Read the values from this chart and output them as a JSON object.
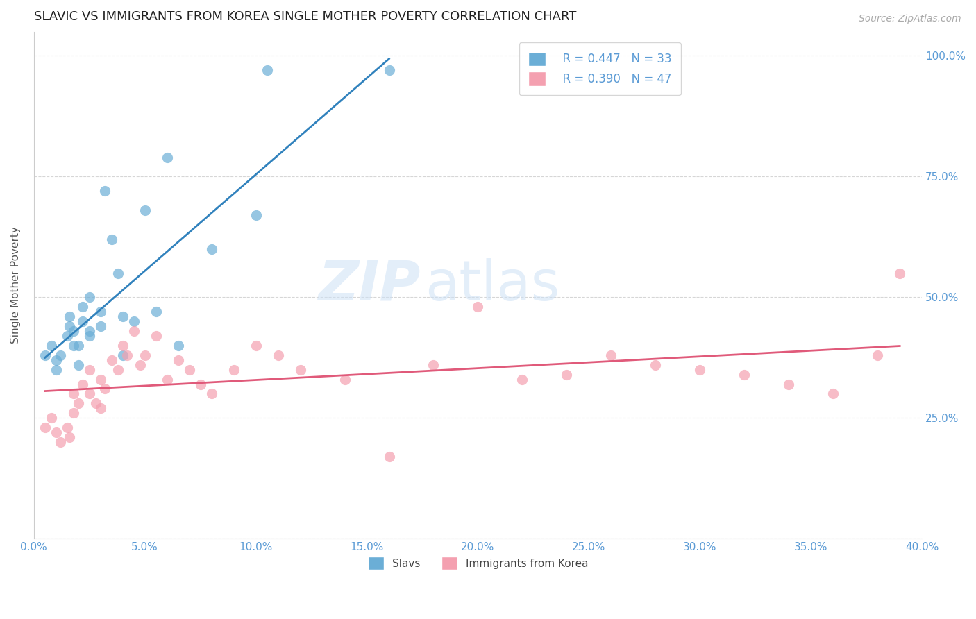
{
  "title": "SLAVIC VS IMMIGRANTS FROM KOREA SINGLE MOTHER POVERTY CORRELATION CHART",
  "source": "Source: ZipAtlas.com",
  "ylabel": "Single Mother Poverty",
  "yticks": [
    0.0,
    0.25,
    0.5,
    0.75,
    1.0
  ],
  "ytick_labels": [
    "",
    "25.0%",
    "50.0%",
    "75.0%",
    "100.0%"
  ],
  "xlim": [
    0.0,
    0.4
  ],
  "ylim": [
    0.0,
    1.05
  ],
  "legend_blue_r": "R = 0.447",
  "legend_blue_n": "N = 33",
  "legend_pink_r": "R = 0.390",
  "legend_pink_n": "N = 47",
  "blue_color": "#6baed6",
  "pink_color": "#f4a0b0",
  "blue_line_color": "#3182bd",
  "pink_line_color": "#e05a7a",
  "axis_label_color": "#5b9bd5",
  "background_color": "#ffffff",
  "watermark_zip": "ZIP",
  "watermark_atlas": "atlas",
  "slavs_x": [
    0.005,
    0.008,
    0.01,
    0.01,
    0.012,
    0.015,
    0.016,
    0.016,
    0.018,
    0.018,
    0.02,
    0.02,
    0.022,
    0.022,
    0.025,
    0.025,
    0.025,
    0.03,
    0.03,
    0.032,
    0.035,
    0.038,
    0.04,
    0.04,
    0.045,
    0.05,
    0.055,
    0.06,
    0.065,
    0.08,
    0.1,
    0.105,
    0.16
  ],
  "slavs_y": [
    0.38,
    0.4,
    0.35,
    0.37,
    0.38,
    0.42,
    0.44,
    0.46,
    0.4,
    0.43,
    0.36,
    0.4,
    0.45,
    0.48,
    0.42,
    0.43,
    0.5,
    0.44,
    0.47,
    0.72,
    0.62,
    0.55,
    0.46,
    0.38,
    0.45,
    0.68,
    0.47,
    0.79,
    0.4,
    0.6,
    0.67,
    0.97,
    0.97
  ],
  "korea_x": [
    0.005,
    0.008,
    0.01,
    0.012,
    0.015,
    0.016,
    0.018,
    0.018,
    0.02,
    0.022,
    0.025,
    0.025,
    0.028,
    0.03,
    0.03,
    0.032,
    0.035,
    0.038,
    0.04,
    0.042,
    0.045,
    0.048,
    0.05,
    0.055,
    0.06,
    0.065,
    0.07,
    0.075,
    0.08,
    0.09,
    0.1,
    0.11,
    0.12,
    0.14,
    0.16,
    0.18,
    0.2,
    0.22,
    0.24,
    0.26,
    0.28,
    0.3,
    0.32,
    0.34,
    0.36,
    0.38,
    0.39
  ],
  "korea_y": [
    0.23,
    0.25,
    0.22,
    0.2,
    0.23,
    0.21,
    0.26,
    0.3,
    0.28,
    0.32,
    0.35,
    0.3,
    0.28,
    0.27,
    0.33,
    0.31,
    0.37,
    0.35,
    0.4,
    0.38,
    0.43,
    0.36,
    0.38,
    0.42,
    0.33,
    0.37,
    0.35,
    0.32,
    0.3,
    0.35,
    0.4,
    0.38,
    0.35,
    0.33,
    0.17,
    0.36,
    0.48,
    0.33,
    0.34,
    0.38,
    0.36,
    0.35,
    0.34,
    0.32,
    0.3,
    0.38,
    0.55
  ]
}
